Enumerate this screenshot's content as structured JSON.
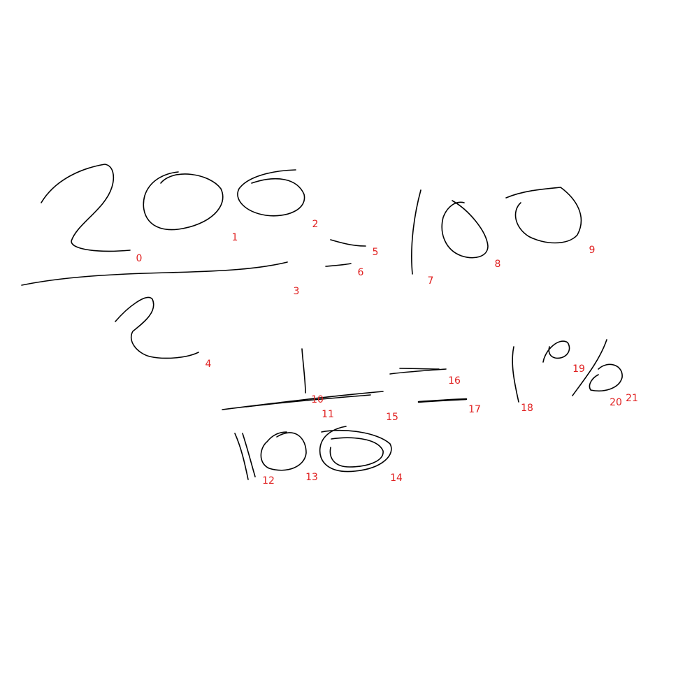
{
  "canvas": {
    "background": "#ffffff",
    "ink_color": "#000000",
    "label_color": "#e02020"
  },
  "strokes": [
    {
      "id": 0,
      "label": "0"
    },
    {
      "id": 1,
      "label": "1"
    },
    {
      "id": 2,
      "label": "2"
    },
    {
      "id": 3,
      "label": "3"
    },
    {
      "id": 4,
      "label": "4"
    },
    {
      "id": 5,
      "label": "5"
    },
    {
      "id": 6,
      "label": "6"
    },
    {
      "id": 7,
      "label": "7"
    },
    {
      "id": 8,
      "label": "8"
    },
    {
      "id": 9,
      "label": "9"
    },
    {
      "id": 10,
      "label": "10"
    },
    {
      "id": 11,
      "label": "11"
    },
    {
      "id": 12,
      "label": "12"
    },
    {
      "id": 13,
      "label": "13"
    },
    {
      "id": 14,
      "label": "14"
    },
    {
      "id": 15,
      "label": "15"
    },
    {
      "id": 16,
      "label": "16"
    },
    {
      "id": 17,
      "label": "17"
    },
    {
      "id": 18,
      "label": "18"
    },
    {
      "id": 19,
      "label": "19"
    },
    {
      "id": 20,
      "label": "20"
    },
    {
      "id": 21,
      "label": "21"
    }
  ]
}
